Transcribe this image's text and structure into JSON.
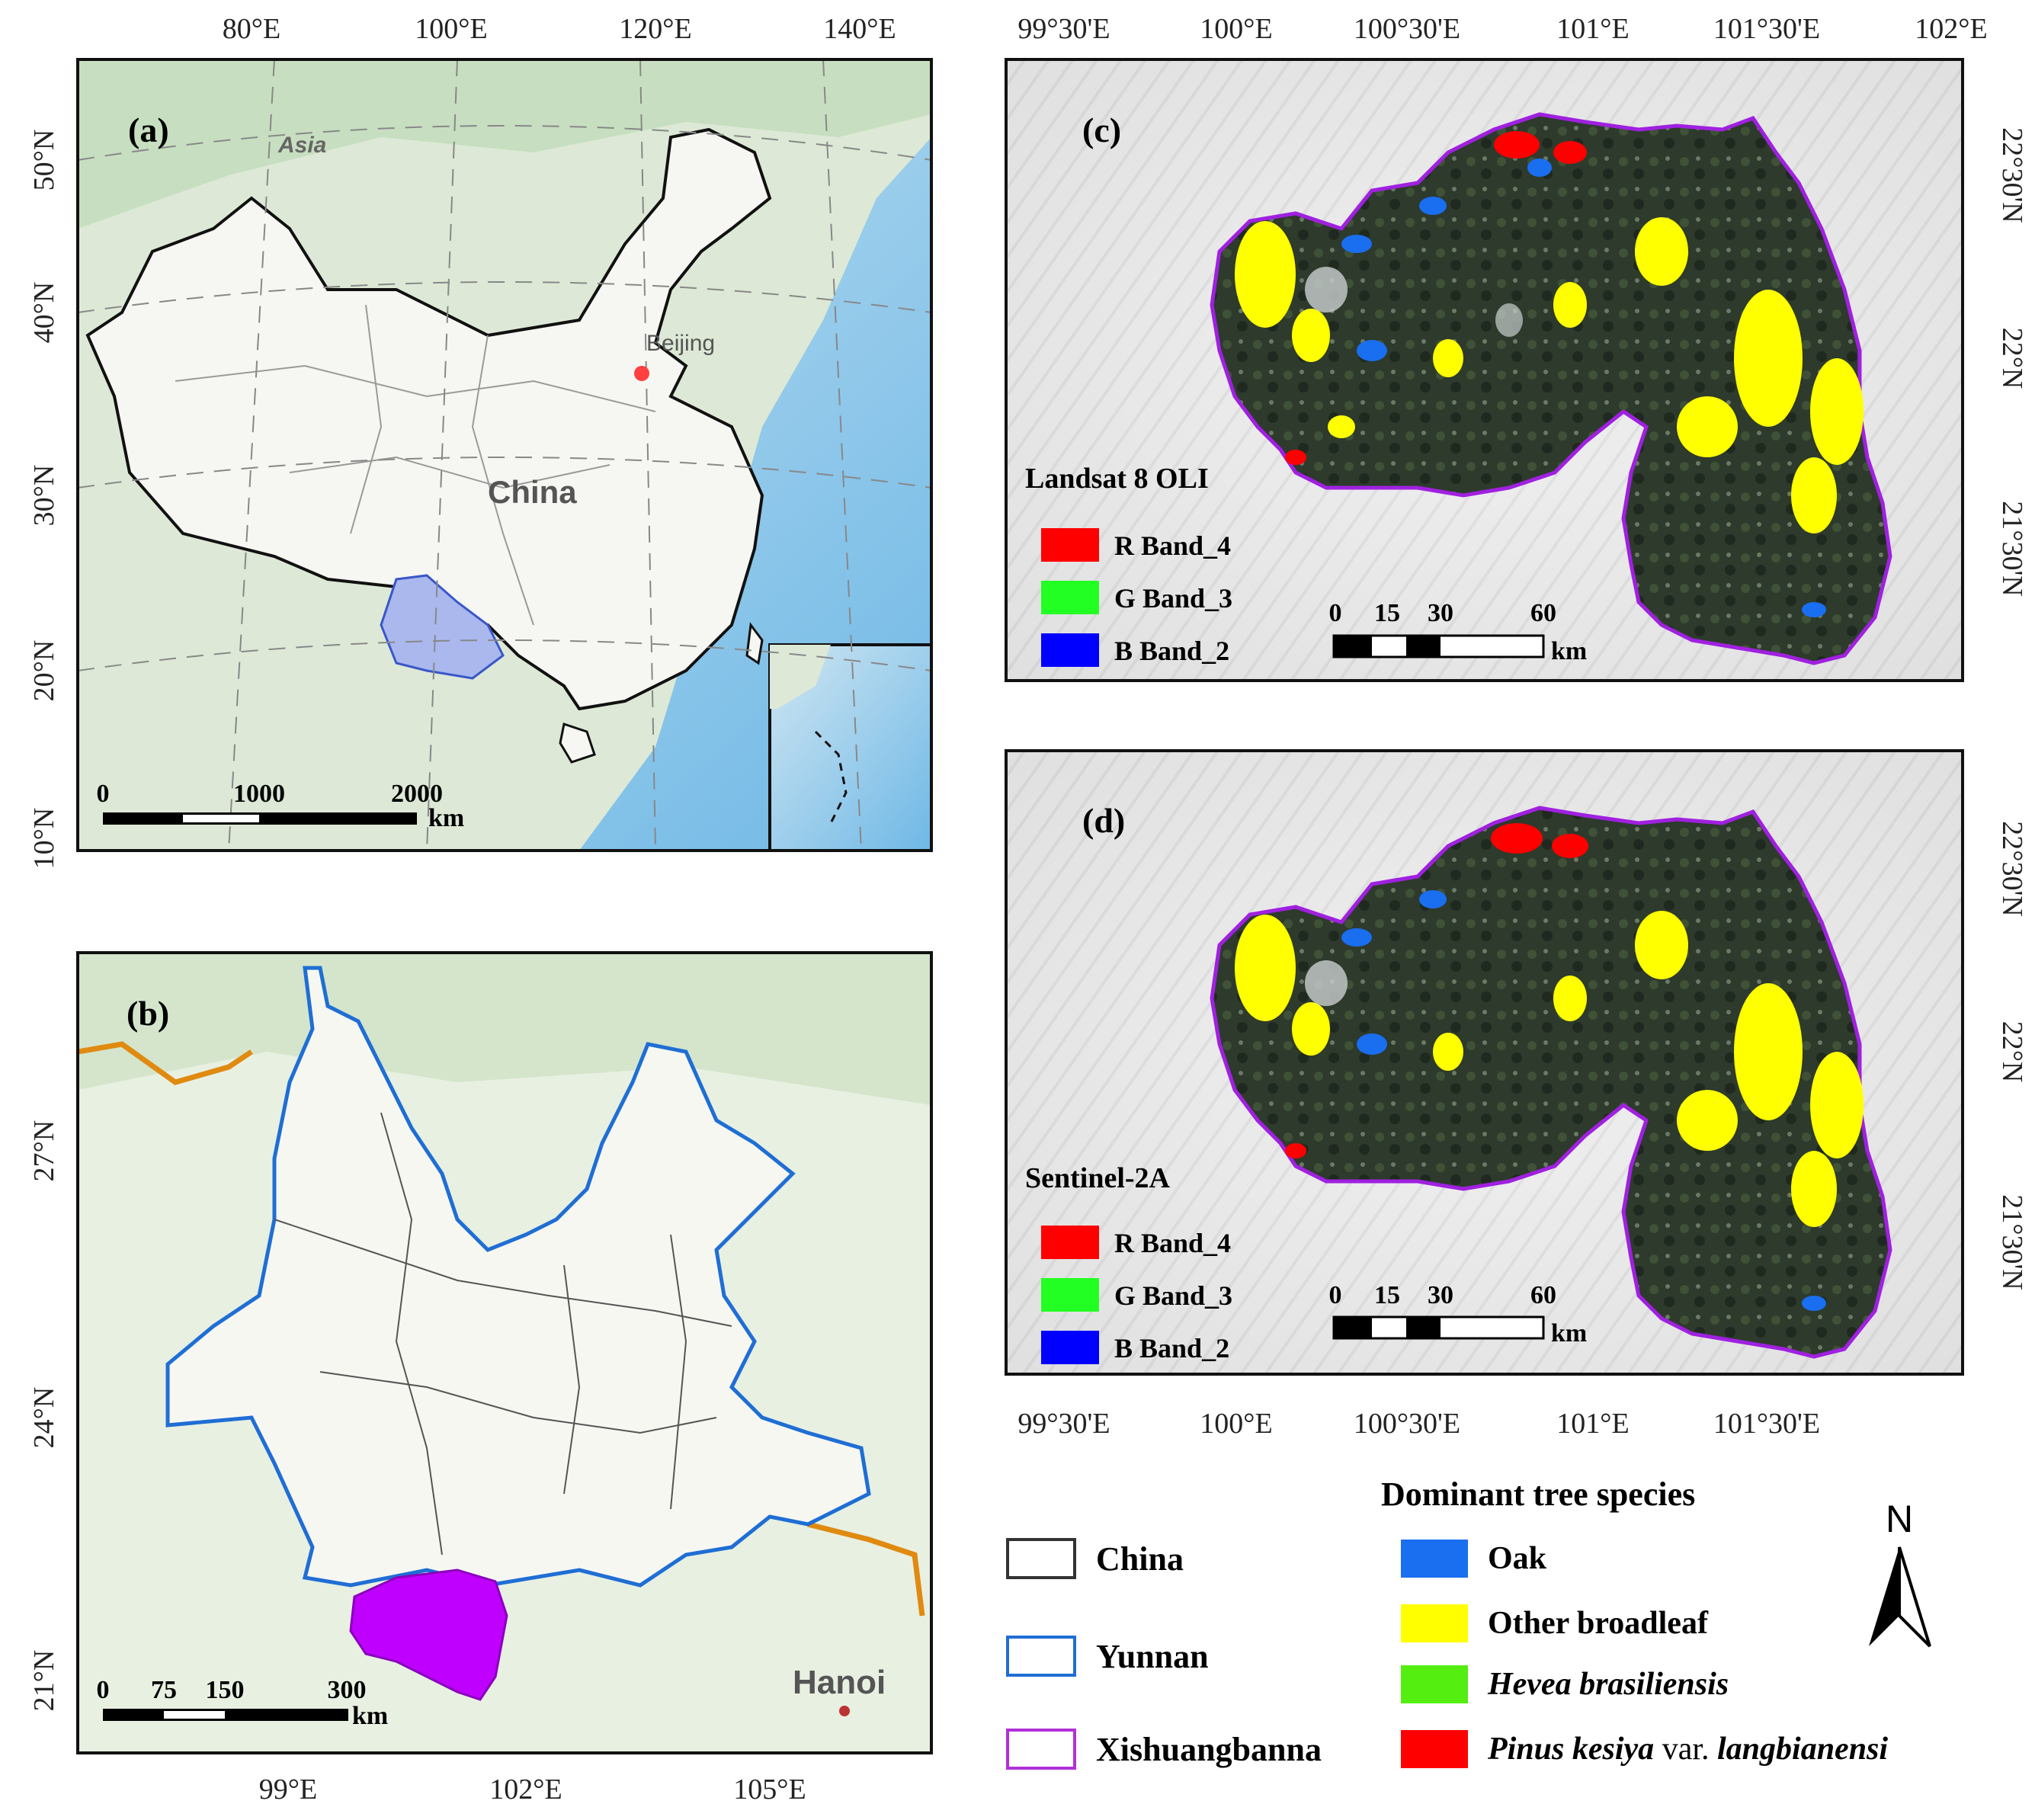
{
  "panel_a": {
    "label": "(a)",
    "top_ticks": [
      "80°E",
      "100°E",
      "120°E",
      "140°E"
    ],
    "left_ticks": [
      "50°N",
      "40°N",
      "30°N",
      "20°N",
      "10°N"
    ],
    "place_labels": {
      "asia": "Asia",
      "beijing": "Beijing",
      "china": "China"
    },
    "scale": {
      "ticks": [
        "0",
        "1000",
        "2000"
      ],
      "unit": "km"
    }
  },
  "panel_b": {
    "label": "(b)",
    "bottom_ticks": [
      "99°E",
      "102°E",
      "105°E"
    ],
    "left_ticks": [
      "27°N",
      "24°N",
      "21°N"
    ],
    "place_labels": {
      "hanoi": "Hanoi"
    },
    "scale": {
      "ticks": [
        "0",
        "75",
        "150",
        "300"
      ],
      "unit": "km"
    }
  },
  "panel_c": {
    "label": "(c)",
    "sensor": "Landsat 8 OLI",
    "top_ticks": [
      "99°30'E",
      "100°E",
      "100°30'E",
      "101°E",
      "101°30'E",
      "102°E"
    ],
    "right_ticks": [
      "22°30'N",
      "22°N",
      "21°30'N"
    ],
    "bands": [
      {
        "swatch": "#ff0000",
        "label": "R Band_4"
      },
      {
        "swatch": "#22ff22",
        "label": "G Band_3"
      },
      {
        "swatch": "#0000ff",
        "label": "B Band_2"
      }
    ],
    "scale": {
      "ticks": [
        "0",
        "15",
        "30",
        "60"
      ],
      "unit": "km"
    }
  },
  "panel_d": {
    "label": "(d)",
    "sensor": "Sentinel-2A",
    "bottom_ticks": [
      "99°30'E",
      "100°E",
      "100°30'E",
      "101°E",
      "101°30'E"
    ],
    "right_ticks": [
      "22°30'N",
      "22°N",
      "21°30'N"
    ],
    "bands": [
      {
        "swatch": "#ff0000",
        "label": "R Band_4"
      },
      {
        "swatch": "#22ff22",
        "label": "G Band_3"
      },
      {
        "swatch": "#0000ff",
        "label": "B Band_2"
      }
    ],
    "scale": {
      "ticks": [
        "0",
        "15",
        "30",
        "60"
      ],
      "unit": "km"
    }
  },
  "legend": {
    "boundaries": [
      {
        "label": "China",
        "color": "#333333"
      },
      {
        "label": "Yunnan",
        "color": "#1f6ed4"
      },
      {
        "label": "Xishuangbanna",
        "color": "#b030d8"
      }
    ],
    "species_title": "Dominant tree species",
    "species": [
      {
        "label": "Oak",
        "color": "#1a6ef0"
      },
      {
        "label": "Other broadleaf",
        "color": "#ffff00"
      },
      {
        "label": "Hevea brasiliensis",
        "color": "#55ee11"
      },
      {
        "label_italic": "Pinus kesiya",
        "label_plain": " var. ",
        "label_italic2": "langbianensi",
        "color": "#ff0000"
      }
    ],
    "north_arrow": "N"
  }
}
